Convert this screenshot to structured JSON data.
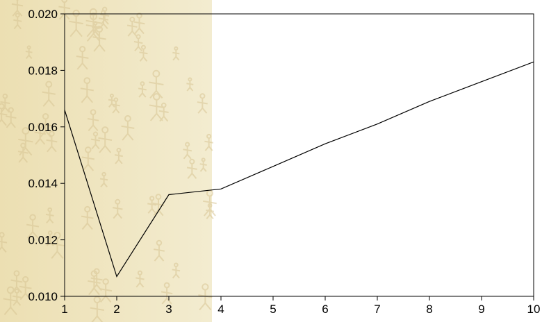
{
  "colors": {
    "background_texture": "#ecdfb2",
    "background_texture_light": "#f3ecd0",
    "texture_marks": "#d8c594",
    "plot_background": "#ffffff",
    "line": "#000000",
    "axis": "#000000"
  },
  "chart_data": {
    "type": "line",
    "title": "",
    "xlabel": "",
    "ylabel": "",
    "xlim": [
      1,
      10
    ],
    "ylim": [
      0.01,
      0.02
    ],
    "x_ticks": [
      "1",
      "2",
      "3",
      "4",
      "5",
      "6",
      "7",
      "8",
      "9",
      "10"
    ],
    "y_ticks": [
      "0.010",
      "0.012",
      "0.014",
      "0.016",
      "0.018",
      "0.020"
    ],
    "grid": false,
    "legend": "none",
    "series": [
      {
        "x": [
          1,
          2,
          3,
          4,
          5,
          6,
          7,
          8,
          9,
          10
        ],
        "values": [
          0.0166,
          0.0107,
          0.0136,
          0.0138,
          0.0146,
          0.0154,
          0.0161,
          0.0169,
          0.0176,
          0.0183
        ]
      }
    ]
  }
}
